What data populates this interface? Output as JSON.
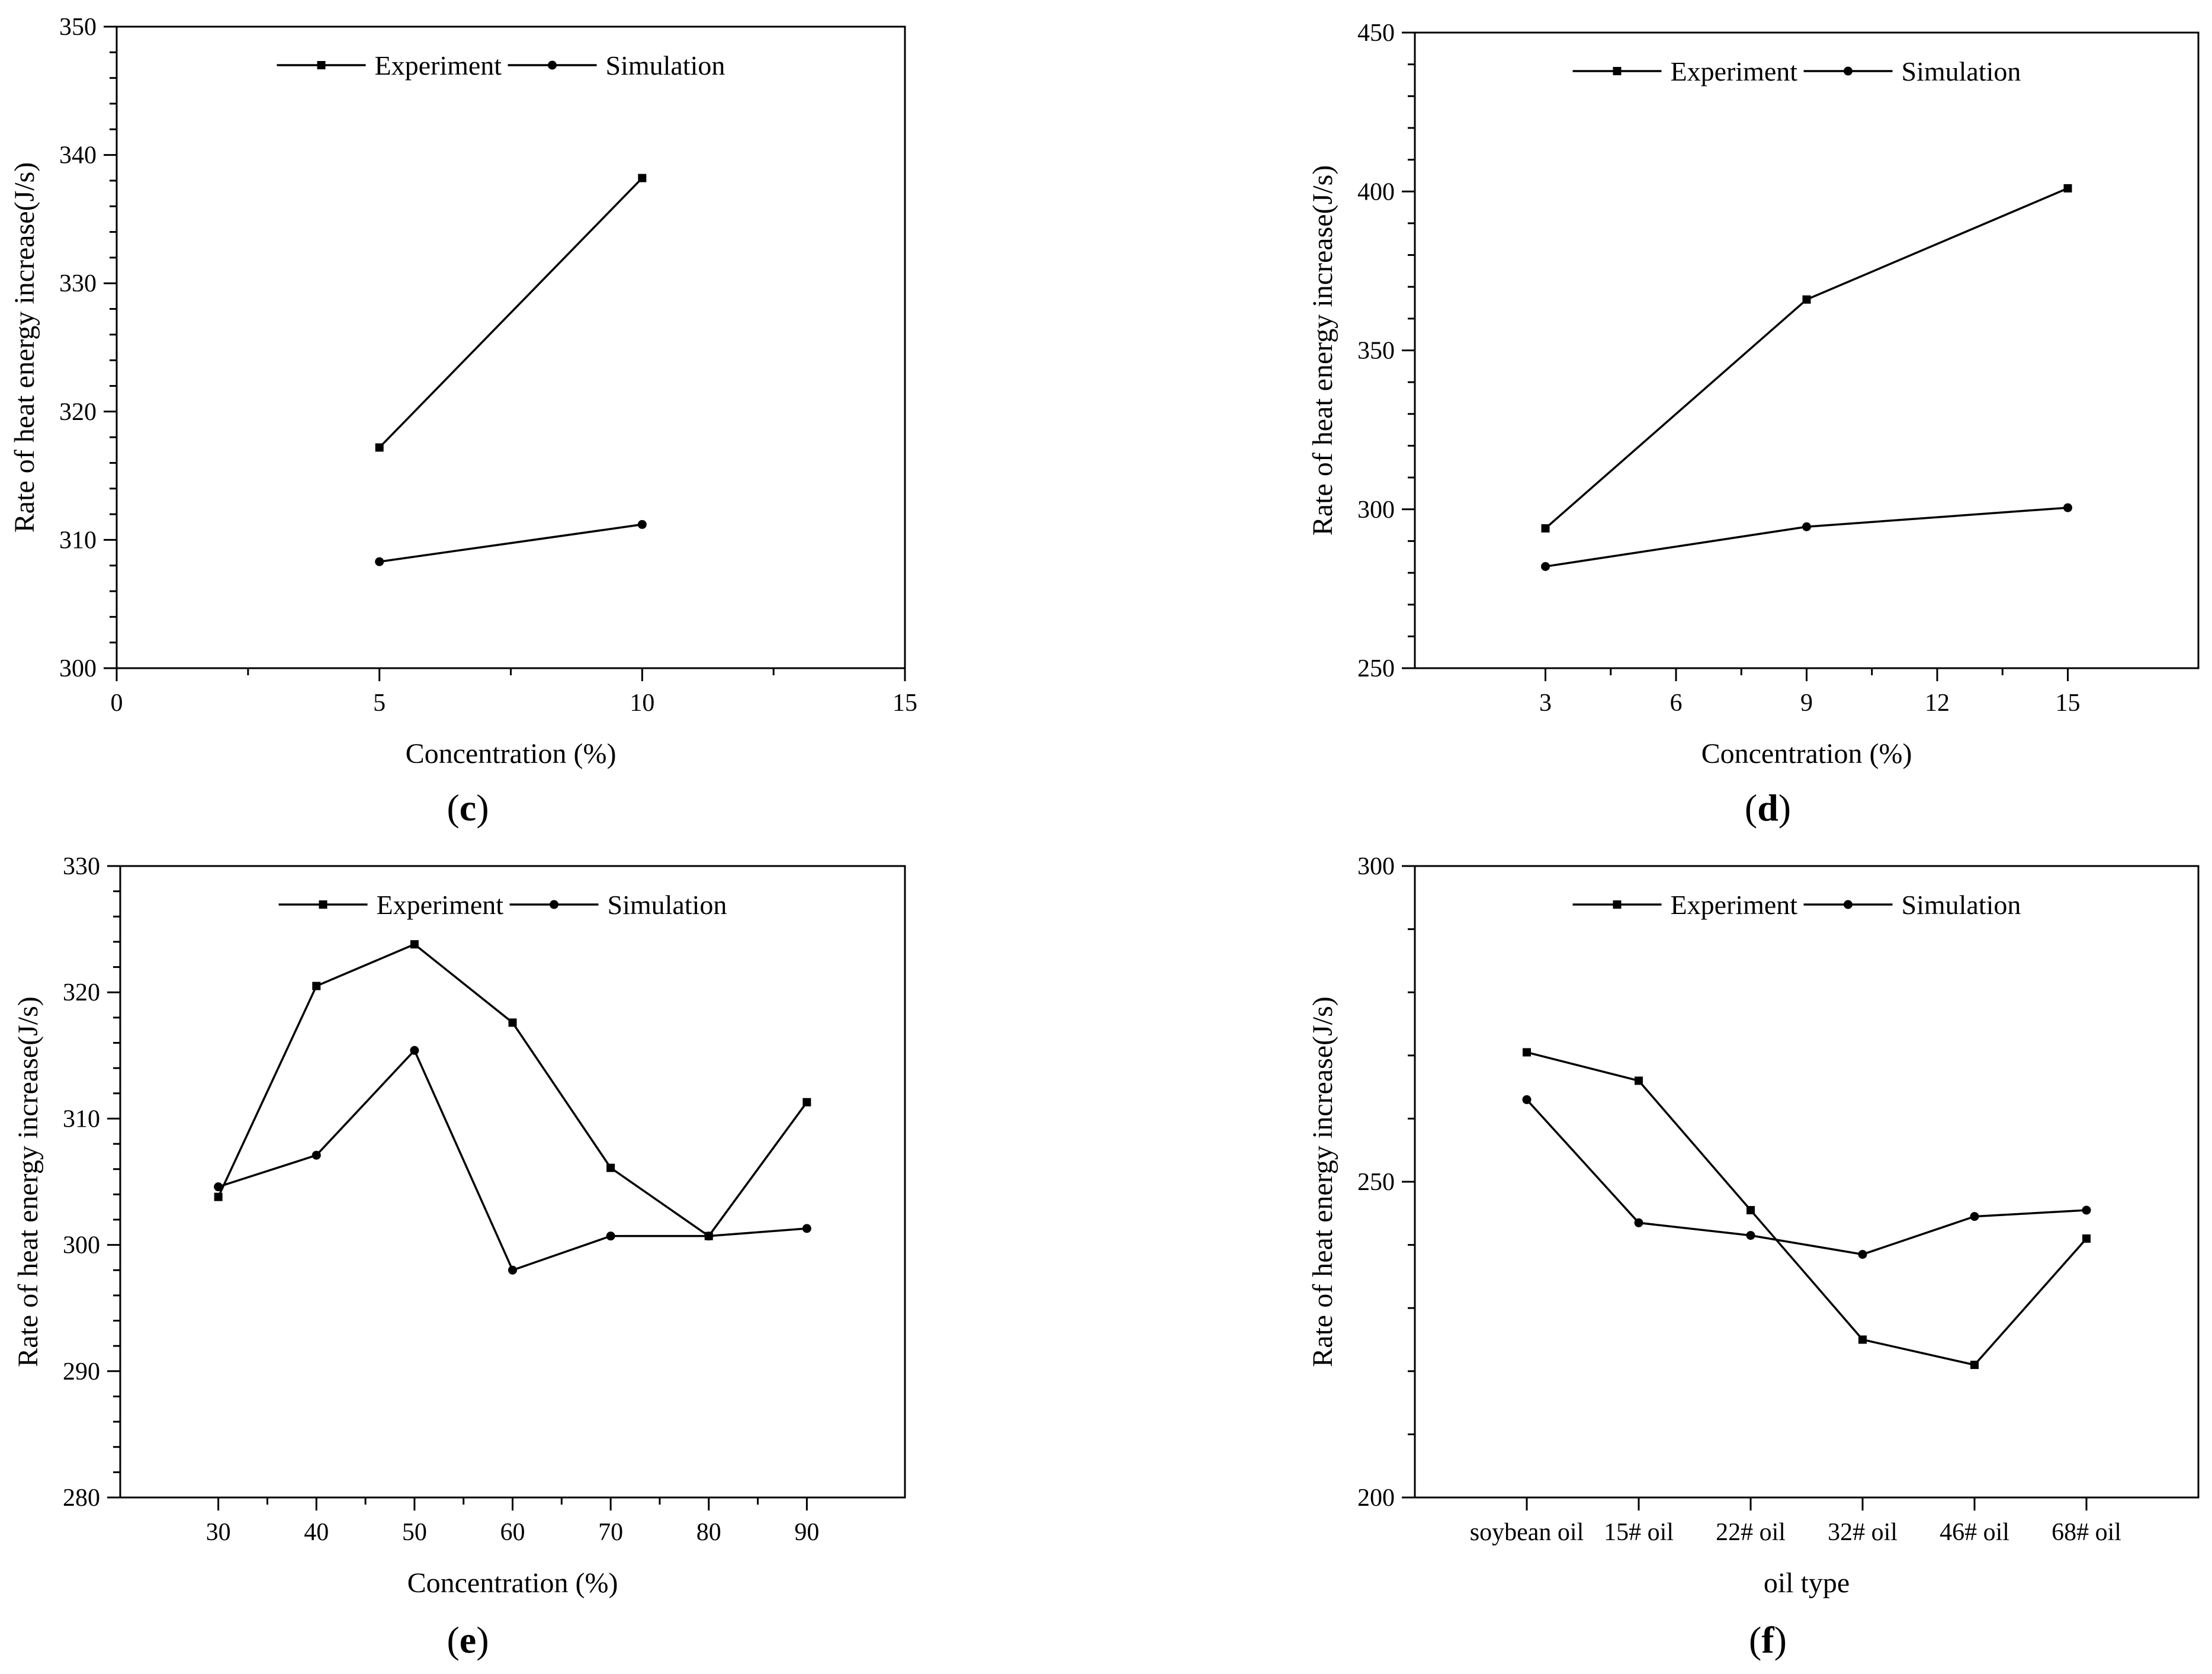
{
  "chart_data": [
    {
      "type": "line",
      "panel_label": "c",
      "xlabel": "Concentration (%)",
      "ylabel": "Rate of heat energy increase(J/s)",
      "xlim": [
        0,
        15
      ],
      "ylim": [
        300,
        350
      ],
      "x_ticks": [
        0,
        5,
        10,
        15
      ],
      "y_ticks": [
        300,
        310,
        320,
        330,
        340,
        350
      ],
      "legend_position": "top-center",
      "series": [
        {
          "name": "Experiment",
          "marker": "square",
          "x": [
            5,
            10
          ],
          "y": [
            317.2,
            338.2
          ]
        },
        {
          "name": "Simulation",
          "marker": "circle",
          "x": [
            5,
            10
          ],
          "y": [
            308.3,
            311.2
          ]
        }
      ]
    },
    {
      "type": "line",
      "panel_label": "d",
      "xlabel": "Concentration (%)",
      "ylabel": "Rate of heat energy increase(J/s)",
      "xlim": [
        0,
        18
      ],
      "ylim": [
        250,
        450
      ],
      "x_ticks": [
        3,
        6,
        9,
        12,
        15
      ],
      "y_ticks": [
        250,
        300,
        350,
        400,
        450
      ],
      "legend_position": "top-center",
      "series": [
        {
          "name": "Experiment",
          "marker": "square",
          "x": [
            3,
            9,
            15
          ],
          "y": [
            294,
            366,
            401
          ]
        },
        {
          "name": "Simulation",
          "marker": "circle",
          "x": [
            3,
            9,
            15
          ],
          "y": [
            282,
            294.5,
            300.5
          ]
        }
      ]
    },
    {
      "type": "line",
      "panel_label": "e",
      "xlabel": "Concentration (%)",
      "ylabel": "Rate of heat energy increase(J/s)",
      "xlim": [
        20,
        100
      ],
      "ylim": [
        280,
        330
      ],
      "x_ticks": [
        30,
        40,
        50,
        60,
        70,
        80,
        90
      ],
      "y_ticks": [
        280,
        290,
        300,
        310,
        320,
        330
      ],
      "legend_position": "top-center",
      "series": [
        {
          "name": "Experiment",
          "marker": "square",
          "x": [
            30,
            40,
            50,
            60,
            70,
            80,
            90
          ],
          "y": [
            303.8,
            320.5,
            323.8,
            317.6,
            306.1,
            300.7,
            311.3
          ]
        },
        {
          "name": "Simulation",
          "marker": "circle",
          "x": [
            30,
            40,
            50,
            60,
            70,
            80,
            90
          ],
          "y": [
            304.6,
            307.1,
            315.4,
            298.0,
            300.7,
            300.7,
            301.3
          ]
        }
      ]
    },
    {
      "type": "line",
      "panel_label": "f",
      "xlabel": "oil type",
      "ylabel": "Rate of heat energy increase(J/s)",
      "categories": [
        "soybean oil",
        "15# oil",
        "22# oil",
        "32# oil",
        "46# oil",
        "68# oil"
      ],
      "ylim": [
        200,
        300
      ],
      "y_ticks": [
        200,
        250,
        300
      ],
      "legend_position": "top-center",
      "series": [
        {
          "name": "Experiment",
          "marker": "square",
          "values": [
            270.5,
            266,
            245.5,
            225,
            221,
            241
          ]
        },
        {
          "name": "Simulation",
          "marker": "circle",
          "values": [
            263,
            243.5,
            241.5,
            238.5,
            244.5,
            245.5
          ]
        }
      ]
    }
  ]
}
